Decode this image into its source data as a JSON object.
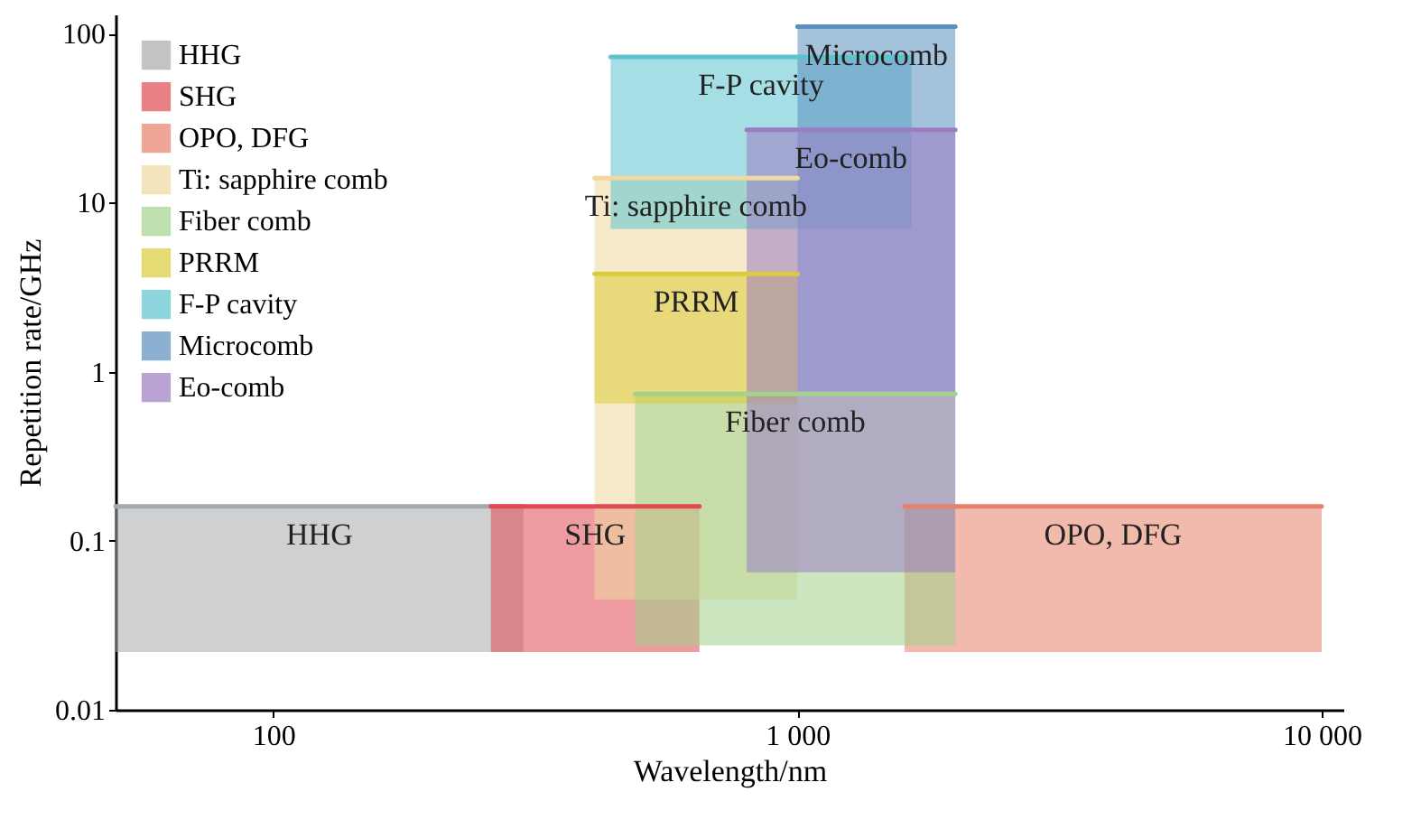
{
  "chart_data": {
    "type": "line",
    "xlabel": "Wavelength/nm",
    "ylabel": "Repetition rate/GHz",
    "log": "xy",
    "grid": false,
    "legend": "top left",
    "xlim": [
      50,
      11000
    ],
    "xticks": [
      100,
      {
        "value": 1000,
        "label": "1 000"
      },
      {
        "value": 10000,
        "label": "10 000"
      }
    ],
    "ylim": [
      0.01,
      130
    ],
    "yticks": [
      0.01,
      0.1,
      1,
      10,
      100
    ],
    "series": [
      {
        "name": "HHG",
        "color": "#a6a9ab",
        "x": [
          50,
          300
        ],
        "values": [
          0.16,
          0.16
        ],
        "lower": [
          0.022,
          0.022
        ],
        "upper": [
          0.16,
          0.16
        ]
      },
      {
        "name": "SHG",
        "color": "#e04a52",
        "x": [
          260,
          650
        ],
        "values": [
          0.16,
          0.16
        ],
        "lower": [
          0.022,
          0.022
        ],
        "upper": [
          0.16,
          0.16
        ]
      },
      {
        "name": "OPO, DFG",
        "color": "#e8806a",
        "x": [
          1600,
          10000
        ],
        "values": [
          0.16,
          0.16
        ],
        "lower": [
          0.022,
          0.022
        ],
        "upper": [
          0.16,
          0.16
        ]
      },
      {
        "name": "Ti: sapphire comb",
        "color": "#f0d8a0",
        "x": [
          410,
          1000
        ],
        "values": [
          14,
          14
        ],
        "lower": [
          0.045,
          0.045
        ],
        "upper": [
          14,
          14
        ]
      },
      {
        "name": "Fiber comb",
        "color": "#a3d28c",
        "x": [
          490,
          2000
        ],
        "values": [
          0.74,
          0.74
        ],
        "lower": [
          0.024,
          0.024
        ],
        "upper": [
          0.74,
          0.74
        ]
      },
      {
        "name": "PRRM",
        "color": "#dccb3a",
        "x": [
          410,
          1000
        ],
        "values": [
          3.8,
          3.8
        ],
        "lower": [
          0.65,
          0.65
        ],
        "upper": [
          3.8,
          3.8
        ]
      },
      {
        "name": "F-P cavity",
        "color": "#5cc3cf",
        "x": [
          440,
          1650
        ],
        "values": [
          73,
          73
        ],
        "lower": [
          7,
          7
        ],
        "upper": [
          73,
          73
        ]
      },
      {
        "name": "Microcomb",
        "color": "#5b8fbf",
        "x": [
          1000,
          2000
        ],
        "values": [
          110,
          110
        ],
        "lower": [
          0.74,
          0.74
        ],
        "upper": [
          110,
          110
        ]
      },
      {
        "name": "Eo-comb",
        "color": "#9a7cc2",
        "x": [
          800,
          2000
        ],
        "values": [
          27,
          27
        ],
        "lower": [
          0.065,
          0.065
        ],
        "upper": [
          27,
          27
        ]
      }
    ]
  }
}
